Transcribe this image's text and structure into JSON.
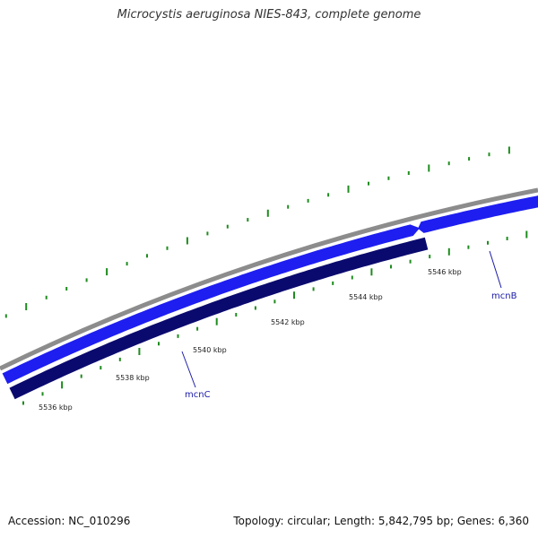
{
  "title": "Microcystis aeruginosa NIES-843, complete genome",
  "footer": {
    "accession": "Accession: NC_010296",
    "stats": "Topology: circular; Length: 5,842,795 bp; Genes: 6,360"
  },
  "colors": {
    "backbone": "#8c8c8c",
    "forward_gene": "#1e1ef0",
    "reverse_gene": "#0a0a6e",
    "ticks": "#1e8c1e",
    "gene_label": "#1a1aa8"
  },
  "ticks": [
    {
      "label": "5536 kbp"
    },
    {
      "label": "5538 kbp"
    },
    {
      "label": "5540 kbp"
    },
    {
      "label": "5542 kbp"
    },
    {
      "label": "5544 kbp"
    },
    {
      "label": "5546 kbp"
    }
  ],
  "genes": [
    {
      "name": "mcnC",
      "strand": "reverse"
    },
    {
      "name": "mcnB",
      "strand": "forward"
    }
  ]
}
